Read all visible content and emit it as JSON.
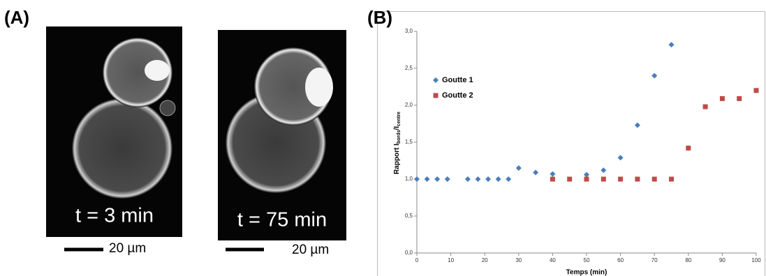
{
  "panels": {
    "a": {
      "label": "(A)",
      "images": [
        {
          "caption": "t = 3 min",
          "scale": "20 µm"
        },
        {
          "caption": "t = 75 min",
          "scale": "20 µm"
        }
      ]
    },
    "b": {
      "label": "(B)"
    }
  },
  "chart_data": {
    "type": "scatter",
    "xlabel": "Temps (min)",
    "ylabel_parts": [
      "Rapport I",
      "bords",
      "/I",
      "centre"
    ],
    "xlim": [
      0,
      100
    ],
    "xticks": [
      0,
      10,
      20,
      30,
      40,
      50,
      60,
      70,
      80,
      90,
      100
    ],
    "ylim": [
      0,
      3
    ],
    "yticks": [
      {
        "value": 0,
        "label": "0,0"
      },
      {
        "value": 0.5,
        "label": "0,5"
      },
      {
        "value": 1,
        "label": "1,0"
      },
      {
        "value": 1.5,
        "label": "1,5"
      },
      {
        "value": 2,
        "label": "2,0"
      },
      {
        "value": 2.5,
        "label": "2,5"
      },
      {
        "value": 3,
        "label": "3,0"
      }
    ],
    "series": [
      {
        "name": "Goutte 1",
        "color": "#4a7ebb",
        "marker": "diamond",
        "x": [
          0,
          3,
          6,
          9,
          15,
          18,
          21,
          24,
          27,
          30,
          35,
          40,
          50,
          55,
          60,
          65,
          70,
          75
        ],
        "values": [
          1,
          1,
          1,
          1,
          1,
          1,
          1,
          1,
          1,
          1.15,
          1.09,
          1.07,
          1.06,
          1.12,
          1.29,
          1.73,
          2.4,
          2.82
        ]
      },
      {
        "name": "Goutte 2",
        "color": "#be4b48",
        "marker": "square",
        "x": [
          40,
          45,
          50,
          55,
          60,
          65,
          70,
          75,
          80,
          85,
          90,
          95,
          100
        ],
        "values": [
          1,
          1,
          1,
          1,
          1,
          1,
          1,
          1,
          1.42,
          1.98,
          2.09,
          2.09,
          2.2
        ]
      }
    ]
  }
}
